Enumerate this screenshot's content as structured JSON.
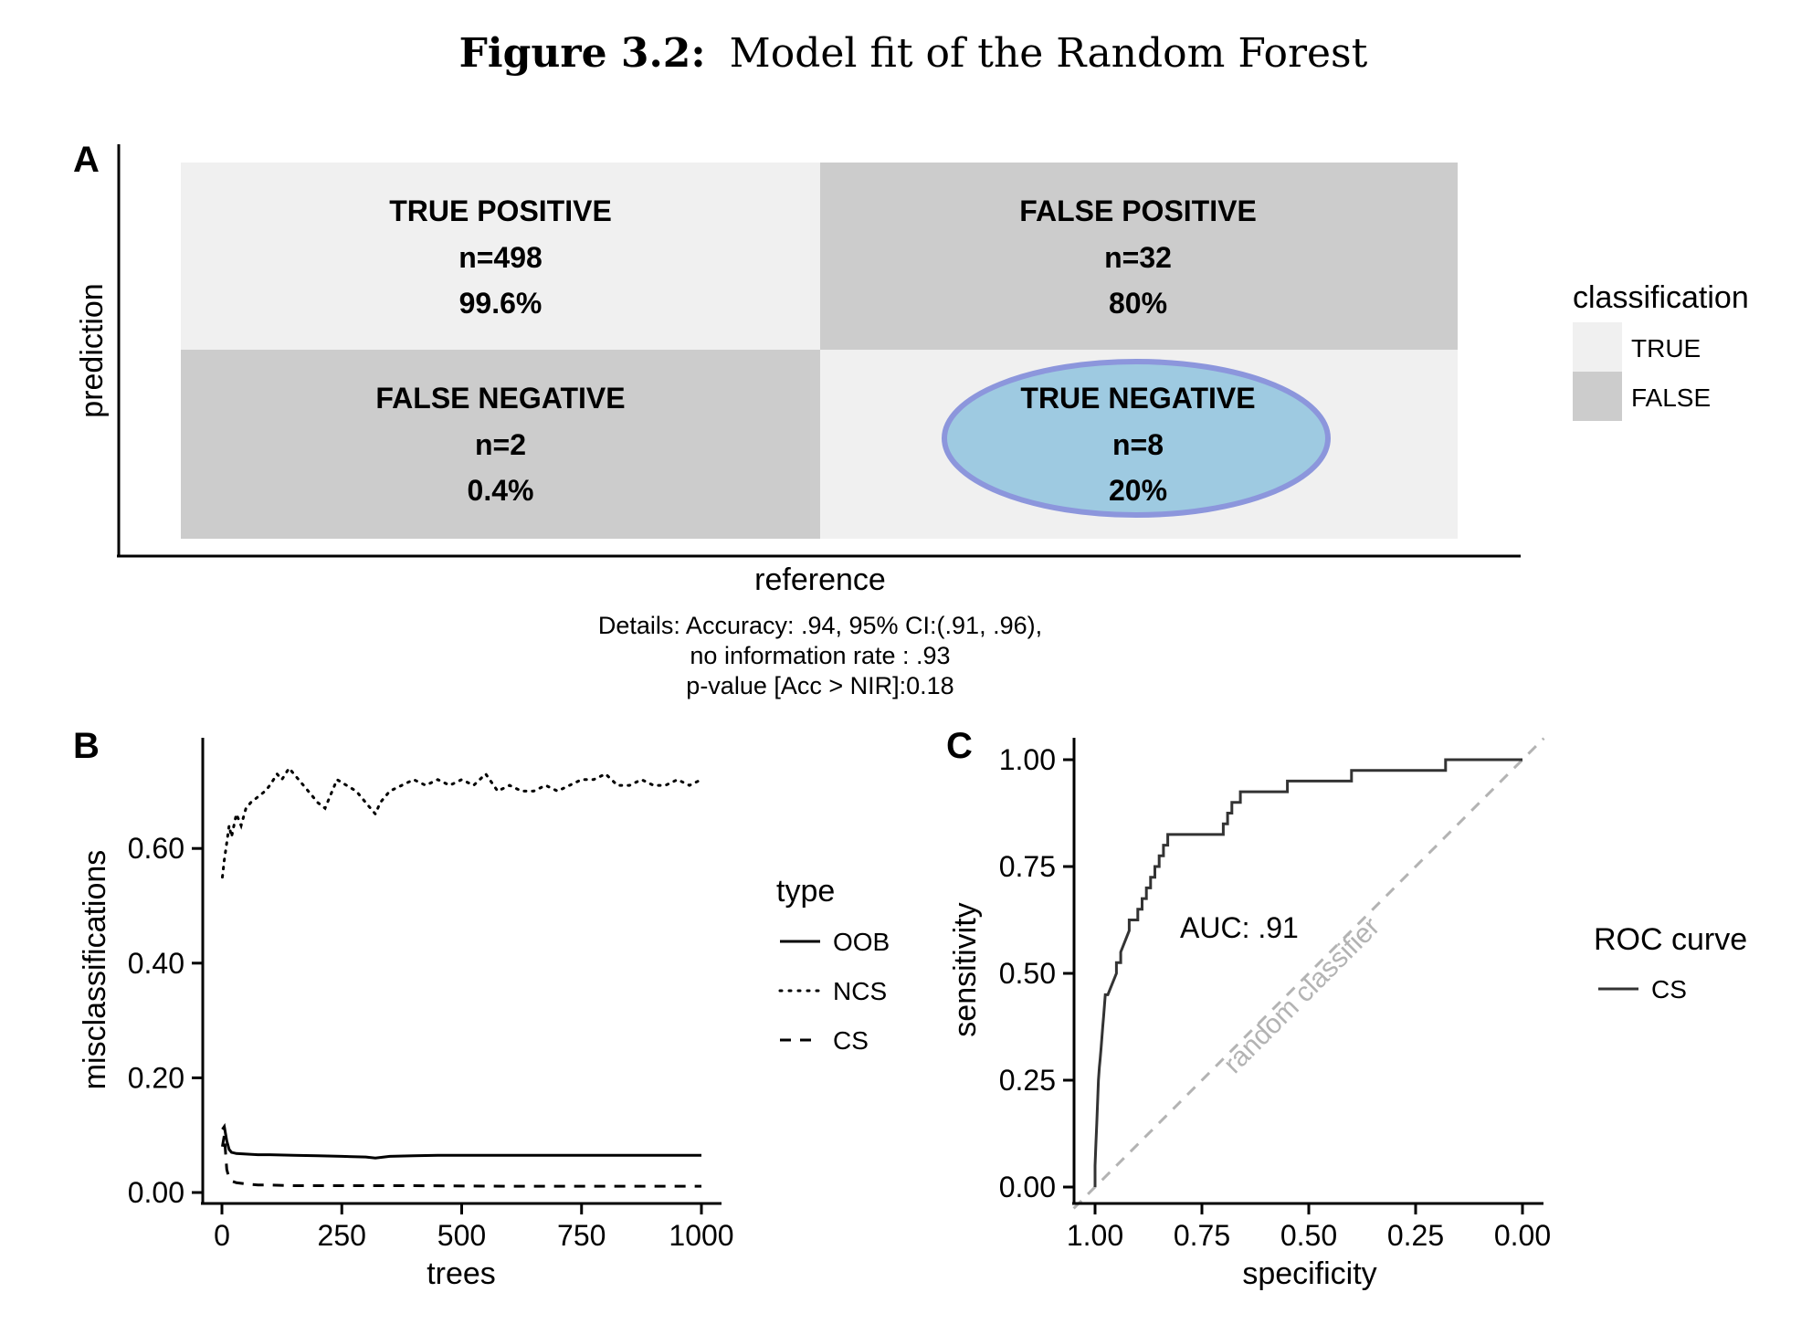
{
  "figure": {
    "title_bold": "Figure 3.2:",
    "title_rest": "Model fit of the Random Forest"
  },
  "colors": {
    "cell_true": "#f0f0f0",
    "cell_false": "#cccccc",
    "highlight_fill": "#9ecae1",
    "highlight_stroke": "#8c96dc",
    "random_line": "#b3b3b3",
    "ink": "#000000"
  },
  "chart_data": [
    {
      "panel": "A",
      "type": "table",
      "title": "",
      "xlabel": "reference",
      "ylabel": "prediction",
      "cells": [
        {
          "label": "TRUE POSITIVE",
          "n": "n=498",
          "pct": "99.6%",
          "classification": "TRUE"
        },
        {
          "label": "FALSE POSITIVE",
          "n": "n=32",
          "pct": "80%",
          "classification": "FALSE"
        },
        {
          "label": "FALSE NEGATIVE",
          "n": "n=2",
          "pct": "0.4%",
          "classification": "FALSE"
        },
        {
          "label": "TRUE NEGATIVE",
          "n": "n=8",
          "pct": "20%",
          "classification": "TRUE",
          "highlighted": true
        }
      ],
      "legend": {
        "title": "classification",
        "entries": [
          {
            "label": "TRUE",
            "color": "#f0f0f0"
          },
          {
            "label": "FALSE",
            "color": "#cccccc"
          }
        ],
        "placement": "right"
      },
      "details": [
        "Details: Accuracy: .94, 95% CI:(.91, .96),",
        "no information rate : .93",
        "p-value [Acc > NIR]:0.18"
      ]
    },
    {
      "panel": "B",
      "type": "line",
      "xlabel": "trees",
      "ylabel": "misclassifications",
      "xlim": [
        0,
        1000
      ],
      "ylim": [
        0,
        0.75
      ],
      "xticks": [
        0,
        250,
        500,
        750,
        1000
      ],
      "xtick_labels": [
        "0",
        "250",
        "500",
        "750",
        "1000"
      ],
      "yticks": [
        0,
        0.2,
        0.4,
        0.6
      ],
      "ytick_labels": [
        "0.00",
        "0.20",
        "0.40",
        "0.60"
      ],
      "legend": {
        "title": "type",
        "placement": "right"
      },
      "series": [
        {
          "name": "OOB",
          "dash": "solid",
          "x": [
            1,
            5,
            10,
            15,
            20,
            30,
            50,
            75,
            100,
            150,
            200,
            250,
            300,
            320,
            350,
            400,
            450,
            500,
            550,
            600,
            700,
            800,
            900,
            1000
          ],
          "y": [
            0.11,
            0.115,
            0.09,
            0.075,
            0.07,
            0.068,
            0.067,
            0.066,
            0.066,
            0.065,
            0.064,
            0.063,
            0.062,
            0.06,
            0.063,
            0.064,
            0.065,
            0.065,
            0.065,
            0.065,
            0.065,
            0.065,
            0.065,
            0.065
          ]
        },
        {
          "name": "NCS",
          "dash": "dotted",
          "x": [
            1,
            5,
            10,
            15,
            20,
            30,
            40,
            50,
            60,
            75,
            90,
            100,
            115,
            125,
            140,
            160,
            180,
            200,
            215,
            225,
            240,
            260,
            280,
            300,
            320,
            330,
            350,
            375,
            400,
            425,
            450,
            475,
            500,
            525,
            550,
            575,
            600,
            625,
            650,
            675,
            700,
            725,
            750,
            775,
            800,
            825,
            850,
            875,
            900,
            925,
            950,
            975,
            1000
          ],
          "y": [
            0.55,
            0.58,
            0.61,
            0.64,
            0.62,
            0.66,
            0.64,
            0.67,
            0.68,
            0.69,
            0.7,
            0.71,
            0.73,
            0.72,
            0.74,
            0.72,
            0.7,
            0.68,
            0.67,
            0.69,
            0.72,
            0.71,
            0.7,
            0.68,
            0.66,
            0.68,
            0.7,
            0.71,
            0.72,
            0.71,
            0.72,
            0.71,
            0.72,
            0.71,
            0.73,
            0.7,
            0.71,
            0.7,
            0.7,
            0.71,
            0.7,
            0.71,
            0.72,
            0.72,
            0.73,
            0.71,
            0.71,
            0.72,
            0.71,
            0.71,
            0.72,
            0.71,
            0.72
          ]
        },
        {
          "name": "CS",
          "dash": "dashed",
          "x": [
            1,
            5,
            10,
            15,
            20,
            30,
            50,
            75,
            100,
            150,
            200,
            300,
            400,
            600,
            800,
            1000
          ],
          "y": [
            0.08,
            0.1,
            0.04,
            0.025,
            0.02,
            0.017,
            0.015,
            0.013,
            0.013,
            0.012,
            0.012,
            0.012,
            0.012,
            0.011,
            0.011,
            0.011
          ]
        }
      ]
    },
    {
      "panel": "C",
      "type": "line",
      "xlabel": "specificity",
      "ylabel": "sensitivity",
      "xlim": [
        1,
        0
      ],
      "ylim": [
        0,
        1
      ],
      "x_reversed": true,
      "xticks": [
        1,
        0.75,
        0.5,
        0.25,
        0
      ],
      "xtick_labels": [
        "1.00",
        "0.75",
        "0.50",
        "0.25",
        "0.00"
      ],
      "yticks": [
        0,
        0.25,
        0.5,
        0.75,
        1
      ],
      "ytick_labels": [
        "0.00",
        "0.25",
        "0.50",
        "0.75",
        "1.00"
      ],
      "annotation": "AUC: .91",
      "diagonal_label": "random classifier",
      "legend": {
        "title": "ROC curve",
        "placement": "right"
      },
      "series": [
        {
          "name": "CS",
          "dash": "solid",
          "x": [
            1.0,
            1.0,
            0.998,
            0.996,
            0.994,
            0.992,
            0.99,
            0.988,
            0.986,
            0.984,
            0.982,
            0.98,
            0.978,
            0.976,
            0.97,
            0.96,
            0.96,
            0.95,
            0.95,
            0.94,
            0.94,
            0.92,
            0.92,
            0.9,
            0.9,
            0.89,
            0.89,
            0.88,
            0.88,
            0.87,
            0.87,
            0.86,
            0.86,
            0.85,
            0.85,
            0.84,
            0.84,
            0.83,
            0.83,
            0.82,
            0.82,
            0.8,
            0.8,
            0.7,
            0.7,
            0.69,
            0.69,
            0.68,
            0.68,
            0.66,
            0.66,
            0.65,
            0.65,
            0.55,
            0.55,
            0.4,
            0.4,
            0.18,
            0.18,
            0.0
          ],
          "y": [
            0.0,
            0.05,
            0.1,
            0.15,
            0.2,
            0.25,
            0.28,
            0.3,
            0.325,
            0.35,
            0.375,
            0.4,
            0.425,
            0.45,
            0.45,
            0.475,
            0.475,
            0.5,
            0.525,
            0.525,
            0.55,
            0.6,
            0.625,
            0.625,
            0.65,
            0.65,
            0.675,
            0.675,
            0.7,
            0.7,
            0.725,
            0.725,
            0.75,
            0.75,
            0.775,
            0.775,
            0.8,
            0.8,
            0.825,
            0.825,
            0.825,
            0.825,
            0.825,
            0.825,
            0.85,
            0.85,
            0.875,
            0.875,
            0.9,
            0.9,
            0.925,
            0.925,
            0.925,
            0.925,
            0.95,
            0.95,
            0.975,
            0.975,
            1.0,
            1.0
          ]
        }
      ]
    }
  ]
}
